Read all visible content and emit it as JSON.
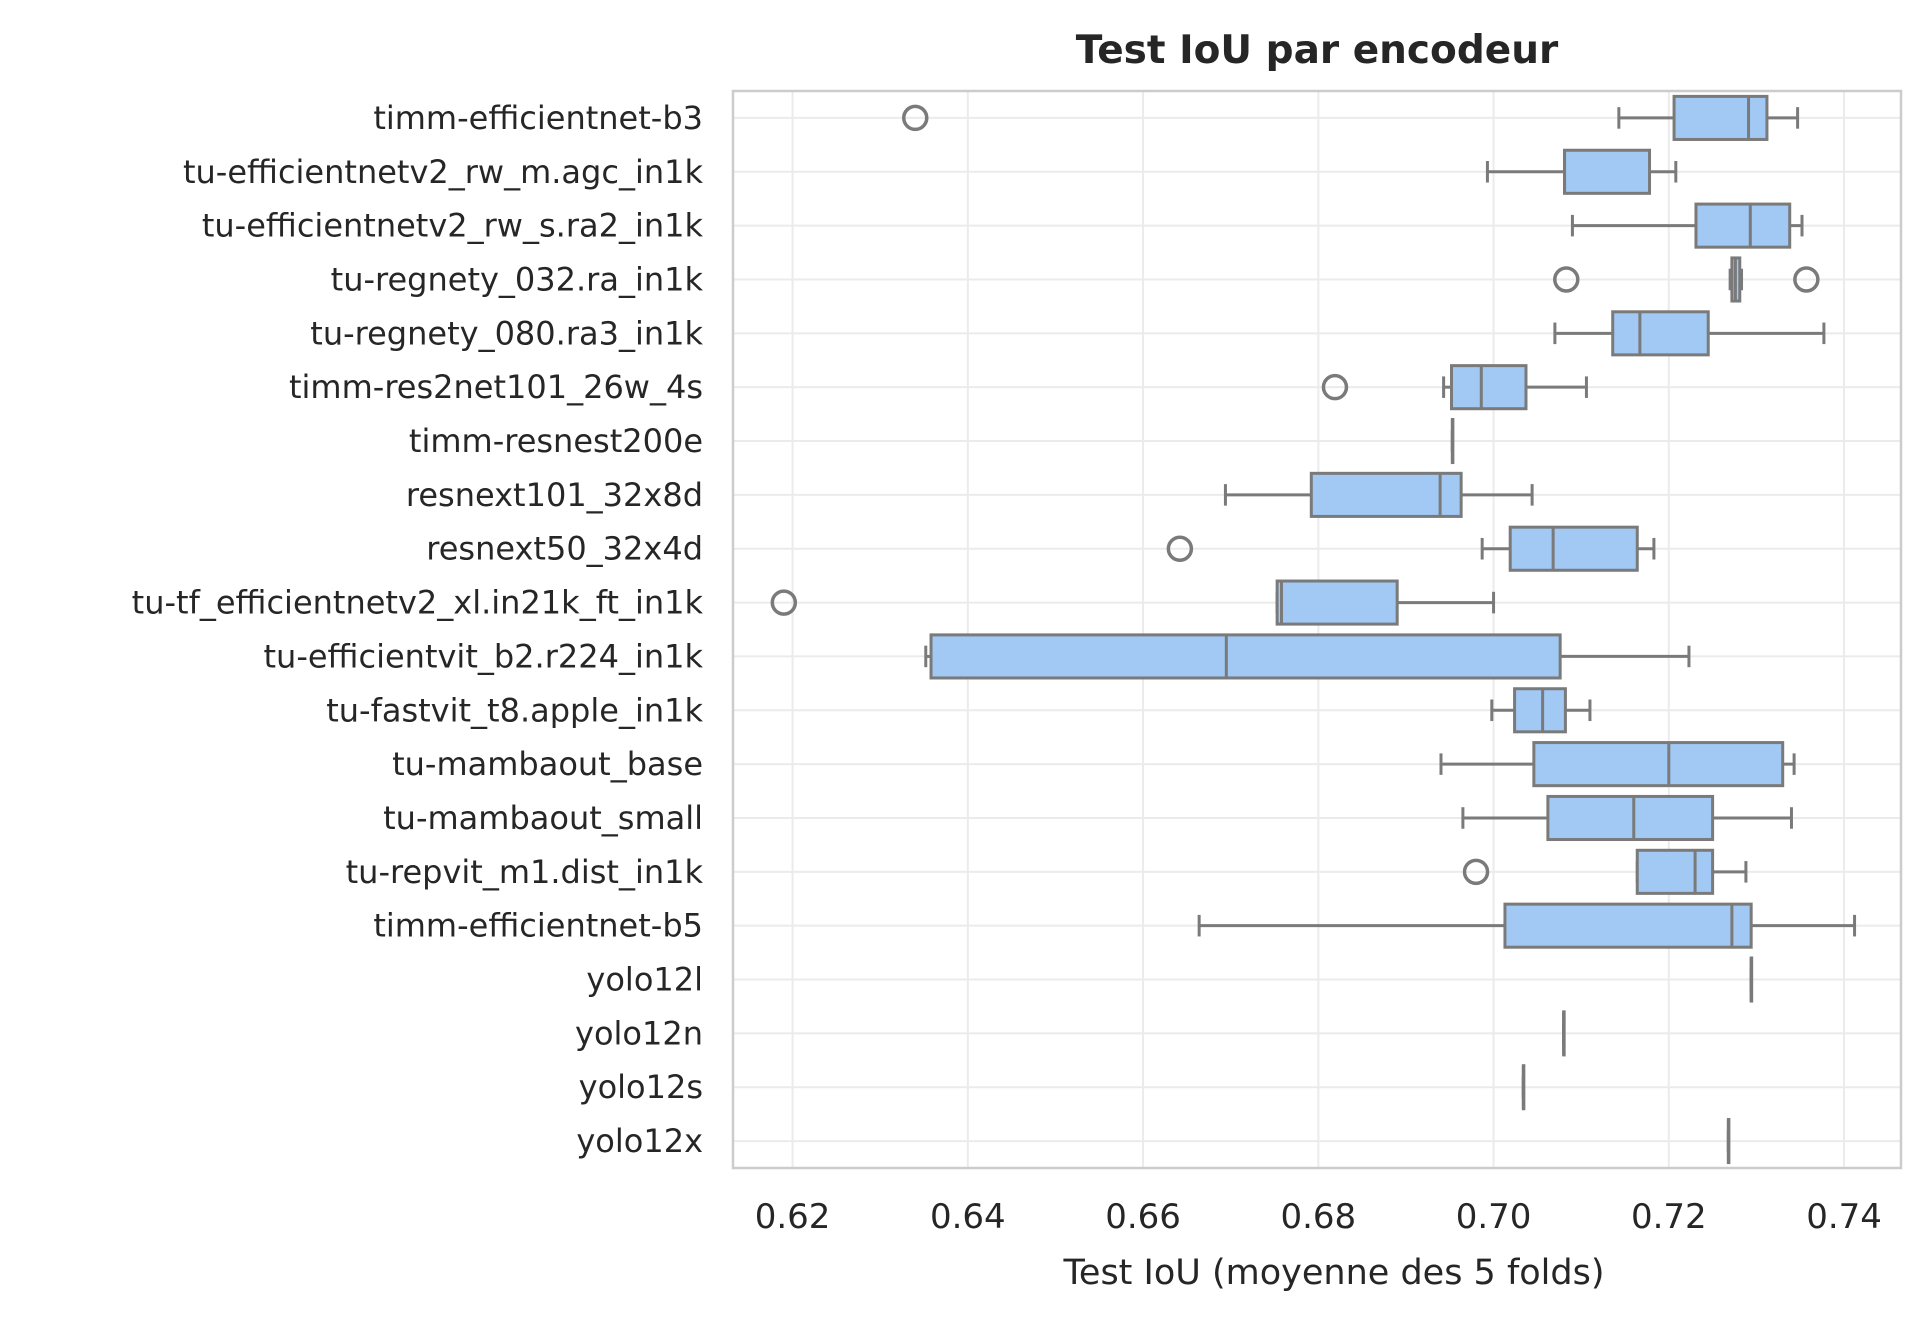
{
  "chart_data": {
    "type": "boxplot",
    "title": "Test IoU par encodeur",
    "xlabel": "Test IoU (moyenne des 5 folds)",
    "ylabel": "",
    "xlim": [
      0.6132,
      0.7465
    ],
    "xticks": [
      0.62,
      0.64,
      0.66,
      0.68,
      0.7,
      0.72,
      0.74
    ],
    "grid": true,
    "orientation": "horizontal",
    "colors": {
      "box_fill": "#a1c9f4",
      "box_edge": "#7a7a7a",
      "grid": "#ebebeb",
      "frame": "#cccccc"
    },
    "categories": [
      "timm-efficientnet-b3",
      "tu-efficientnetv2_rw_m.agc_in1k",
      "tu-efficientnetv2_rw_s.ra2_in1k",
      "tu-regnety_032.ra_in1k",
      "tu-regnety_080.ra3_in1k",
      "timm-res2net101_26w_4s",
      "timm-resnest200e",
      "resnext101_32x8d",
      "resnext50_32x4d",
      "tu-tf_efficientnetv2_xl.in21k_ft_in1k",
      "tu-efficientvit_b2.r224_in1k",
      "tu-fastvit_t8.apple_in1k",
      "tu-mambaout_base",
      "tu-mambaout_small",
      "tu-repvit_m1.dist_in1k",
      "timm-efficientnet-b5",
      "yolo12l",
      "yolo12n",
      "yolo12s",
      "yolo12x"
    ],
    "boxes": [
      {
        "whislo": 0.7143,
        "q1": 0.7206,
        "med": 0.7291,
        "q3": 0.7312,
        "whishi": 0.7347,
        "fliers": [
          0.634
        ]
      },
      {
        "whislo": 0.6993,
        "q1": 0.7081,
        "med": 0.7081,
        "q3": 0.7178,
        "whishi": 0.7208,
        "fliers": []
      },
      {
        "whislo": 0.709,
        "q1": 0.7231,
        "med": 0.7293,
        "q3": 0.7338,
        "whishi": 0.7352,
        "fliers": []
      },
      {
        "whislo": 0.727,
        "q1": 0.7272,
        "med": 0.7276,
        "q3": 0.7281,
        "whishi": 0.7283,
        "fliers": [
          0.7083,
          0.7357
        ]
      },
      {
        "whislo": 0.707,
        "q1": 0.7136,
        "med": 0.7167,
        "q3": 0.7245,
        "whishi": 0.7377,
        "fliers": []
      },
      {
        "whislo": 0.6943,
        "q1": 0.6952,
        "med": 0.6986,
        "q3": 0.7037,
        "whishi": 0.7106,
        "fliers": [
          0.6819
        ]
      },
      {
        "whislo": 0.6953,
        "q1": 0.6953,
        "med": 0.6953,
        "q3": 0.6953,
        "whishi": 0.6953,
        "fliers": []
      },
      {
        "whislo": 0.6694,
        "q1": 0.6792,
        "med": 0.6939,
        "q3": 0.6963,
        "whishi": 0.7044,
        "fliers": []
      },
      {
        "whislo": 0.6987,
        "q1": 0.7019,
        "med": 0.7068,
        "q3": 0.7164,
        "whishi": 0.7183,
        "fliers": [
          0.6642
        ]
      },
      {
        "whislo": 0.6753,
        "q1": 0.6753,
        "med": 0.6758,
        "q3": 0.689,
        "whishi": 0.7,
        "fliers": [
          0.619
        ]
      },
      {
        "whislo": 0.6352,
        "q1": 0.6358,
        "med": 0.6695,
        "q3": 0.7076,
        "whishi": 0.7223,
        "fliers": []
      },
      {
        "whislo": 0.6998,
        "q1": 0.7024,
        "med": 0.7056,
        "q3": 0.7082,
        "whishi": 0.711,
        "fliers": []
      },
      {
        "whislo": 0.694,
        "q1": 0.7046,
        "med": 0.72,
        "q3": 0.733,
        "whishi": 0.7343,
        "fliers": []
      },
      {
        "whislo": 0.6965,
        "q1": 0.7062,
        "med": 0.716,
        "q3": 0.725,
        "whishi": 0.734,
        "fliers": []
      },
      {
        "whislo": 0.7164,
        "q1": 0.7164,
        "med": 0.723,
        "q3": 0.725,
        "whishi": 0.7288,
        "fliers": [
          0.698
        ]
      },
      {
        "whislo": 0.6664,
        "q1": 0.7013,
        "med": 0.7272,
        "q3": 0.7294,
        "whishi": 0.7412,
        "fliers": []
      },
      {
        "whislo": 0.7294,
        "q1": 0.7294,
        "med": 0.7294,
        "q3": 0.7294,
        "whishi": 0.7294,
        "fliers": []
      },
      {
        "whislo": 0.708,
        "q1": 0.708,
        "med": 0.708,
        "q3": 0.708,
        "whishi": 0.708,
        "fliers": []
      },
      {
        "whislo": 0.7034,
        "q1": 0.7034,
        "med": 0.7034,
        "q3": 0.7034,
        "whishi": 0.7034,
        "fliers": []
      },
      {
        "whislo": 0.7268,
        "q1": 0.7268,
        "med": 0.7268,
        "q3": 0.7268,
        "whishi": 0.7268,
        "fliers": []
      }
    ]
  }
}
